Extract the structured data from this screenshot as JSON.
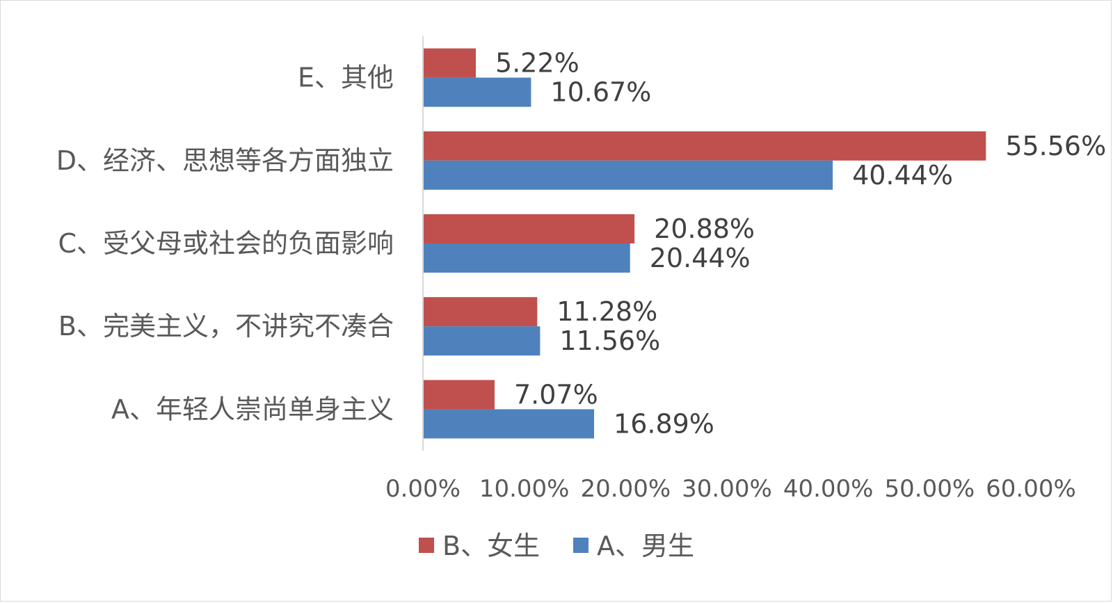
{
  "chart_data": {
    "type": "bar",
    "orientation": "horizontal",
    "categories": [
      "A、年轻人崇尚单身主义",
      "B、完美主义，不讲究不凑合",
      "C、受父母或社会的负面影响",
      "D、经济、思想等各方面独立",
      "E、其他"
    ],
    "series": [
      {
        "name": "B、女生",
        "color": "#c0504d",
        "values": [
          7.07,
          11.28,
          20.88,
          55.56,
          5.22
        ],
        "labels": [
          "7.07%",
          "11.28%",
          "20.88%",
          "55.56%",
          "5.22%"
        ]
      },
      {
        "name": "A、男生",
        "color": "#4f81bd",
        "values": [
          16.89,
          11.56,
          20.44,
          40.44,
          10.67
        ],
        "labels": [
          "16.89%",
          "11.56%",
          "20.44%",
          "40.44%",
          "10.67%"
        ]
      }
    ],
    "xlim": [
      0,
      60
    ],
    "xticks": [
      0,
      10,
      20,
      30,
      40,
      50,
      60
    ],
    "xtick_labels": [
      "0.00%",
      "10.00%",
      "20.00%",
      "30.00%",
      "40.00%",
      "50.00%",
      "60.00%"
    ],
    "grid": false,
    "legend_position": "bottom"
  }
}
